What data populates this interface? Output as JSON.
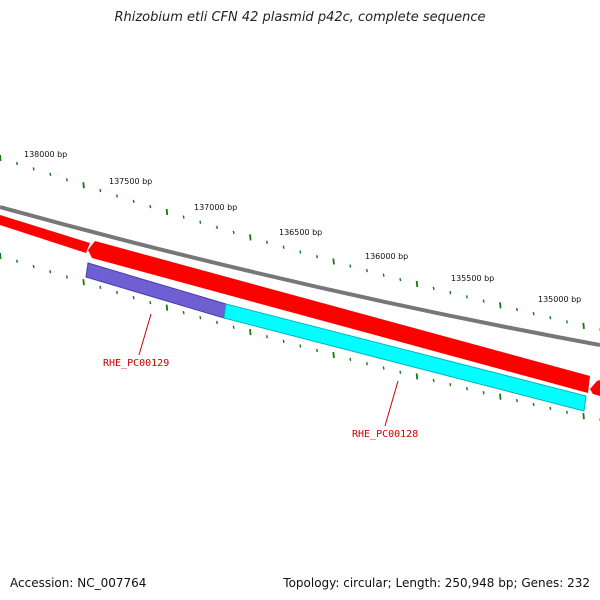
{
  "title": "Rhizobium etli CFN 42 plasmid p42c, complete sequence",
  "footer": {
    "accession": "Accession: NC_007764",
    "summary": "Topology: circular; Length: 250,948 bp; Genes: 232"
  },
  "scale_labels": [
    "138000 bp",
    "137500 bp",
    "137000 bp",
    "136500 bp",
    "136000 bp",
    "135500 bp",
    "135000 bp"
  ],
  "genes": [
    {
      "name": "RHE_PC00129",
      "color": "#6f5fd3"
    },
    {
      "name": "RHE_PC00128",
      "color": "#00ffff"
    }
  ],
  "colors": {
    "backbone": "#777777",
    "forward_strand_feature": "#ff0000",
    "tick": "#127a12",
    "gene_label": "#cc0000"
  }
}
